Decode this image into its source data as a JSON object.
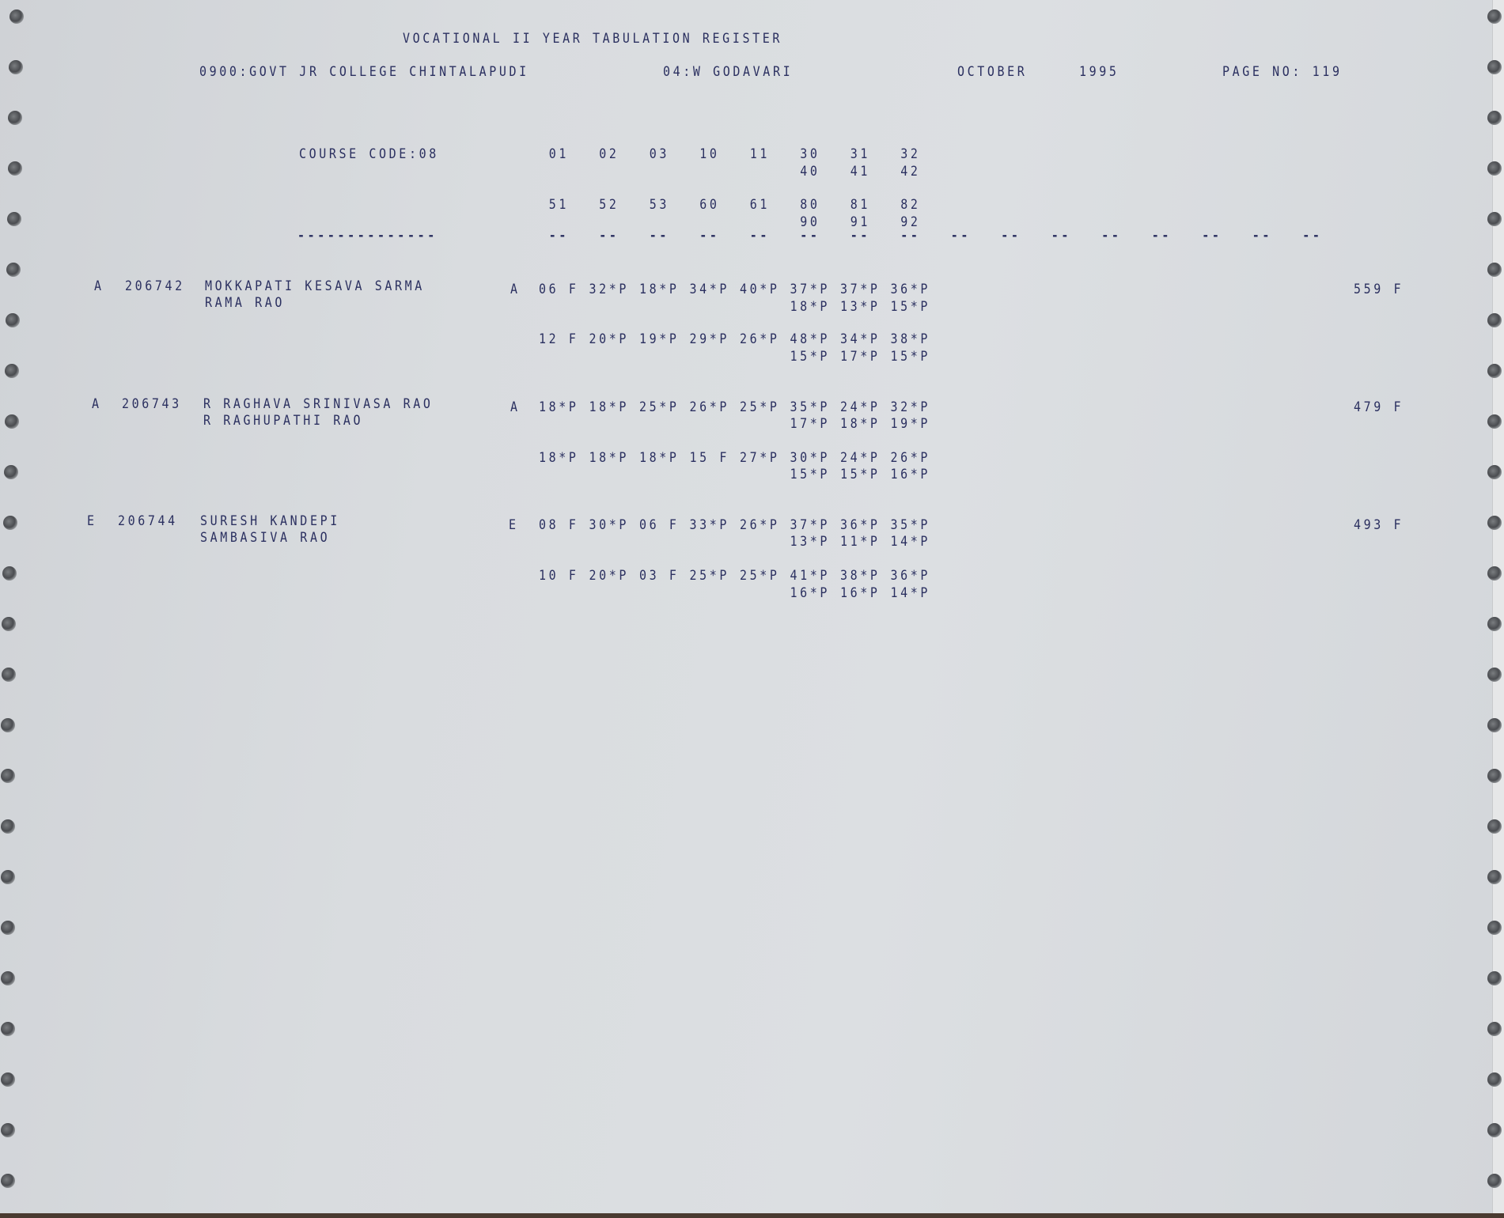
{
  "header": {
    "title": "VOCATIONAL II YEAR TABULATION REGISTER",
    "college": "0900:GOVT JR COLLEGE CHINTALAPUDI",
    "district": "04:W GODAVARI",
    "month": "OCTOBER",
    "year": "1995",
    "page": "PAGE NO: 119"
  },
  "course": {
    "label": "COURSE CODE:08",
    "underline": "--------------",
    "codes_row1": [
      "01",
      "02",
      "03",
      "10",
      "11",
      "30",
      "31",
      "32"
    ],
    "codes_row1_sub": [
      "40",
      "41",
      "42"
    ],
    "codes_row2": [
      "51",
      "52",
      "53",
      "60",
      "61",
      "80",
      "81",
      "82"
    ],
    "codes_row2_sub": [
      "90",
      "91",
      "92"
    ],
    "column_dash": "--",
    "dash_count": 16
  },
  "students": [
    {
      "category": "A",
      "roll": "206742",
      "name": "MOKKAPATI KESAVA SARMA",
      "father": "RAMA RAO",
      "medium": "A",
      "marks1": [
        "06 F",
        "32*P",
        "18*P",
        "34*P",
        "40*P",
        "37*P",
        "37*P",
        "36*P"
      ],
      "marks1_sub": [
        "18*P",
        "13*P",
        "15*P"
      ],
      "marks2": [
        "12 F",
        "20*P",
        "19*P",
        "29*P",
        "26*P",
        "48*P",
        "34*P",
        "38*P"
      ],
      "marks2_sub": [
        "15*P",
        "17*P",
        "15*P"
      ],
      "total": "559 F"
    },
    {
      "category": "A",
      "roll": "206743",
      "name": "R RAGHAVA SRINIVASA RAO",
      "father": "R RAGHUPATHI RAO",
      "medium": "A",
      "marks1": [
        "18*P",
        "18*P",
        "25*P",
        "26*P",
        "25*P",
        "35*P",
        "24*P",
        "32*P"
      ],
      "marks1_sub": [
        "17*P",
        "18*P",
        "19*P"
      ],
      "marks2": [
        "18*P",
        "18*P",
        "18*P",
        "15 F",
        "27*P",
        "30*P",
        "24*P",
        "26*P"
      ],
      "marks2_sub": [
        "15*P",
        "15*P",
        "16*P"
      ],
      "total": "479 F"
    },
    {
      "category": "E",
      "roll": "206744",
      "name": "SURESH KANDEPI",
      "father": "SAMBASIVA RAO",
      "medium": "E",
      "marks1": [
        "08 F",
        "30*P",
        "06 F",
        "33*P",
        "26*P",
        "37*P",
        "36*P",
        "35*P"
      ],
      "marks1_sub": [
        "13*P",
        "11*P",
        "14*P"
      ],
      "marks2": [
        "10 F",
        "20*P",
        "03 F",
        "25*P",
        "25*P",
        "41*P",
        "38*P",
        "36*P"
      ],
      "marks2_sub": [
        "16*P",
        "16*P",
        "14*P"
      ],
      "total": "493 F"
    }
  ]
}
